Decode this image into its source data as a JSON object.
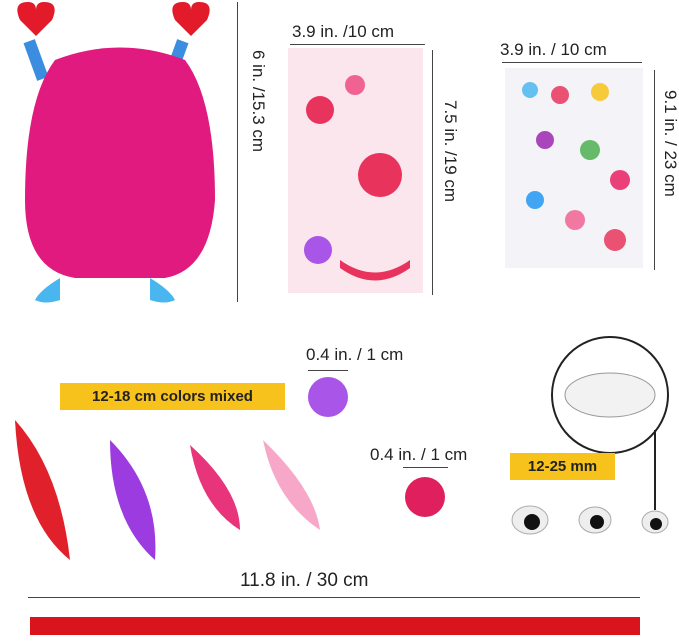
{
  "labels": {
    "monster_height": "6 in. /15.3 cm",
    "sticker1_width": "3.9 in. /10 cm",
    "sticker1_height": "7.5 in. /19 cm",
    "sticker2_width": "3.9 in. / 10 cm",
    "sticker2_height": "9.1 in. / 23 cm",
    "dot_size": "0.4 in. / 1 cm",
    "feathers_tag": "12-18 cm colors mixed",
    "pompom_size": "0.4 in. / 1 cm",
    "eyes_tag": "12-25 mm",
    "ribbon_length": "11.8 in. / 30 cm"
  },
  "colors": {
    "monster": "#e01a7e",
    "tag": "#f7c21b",
    "ribbon": "#d9141c",
    "dot": "#a855e8"
  }
}
